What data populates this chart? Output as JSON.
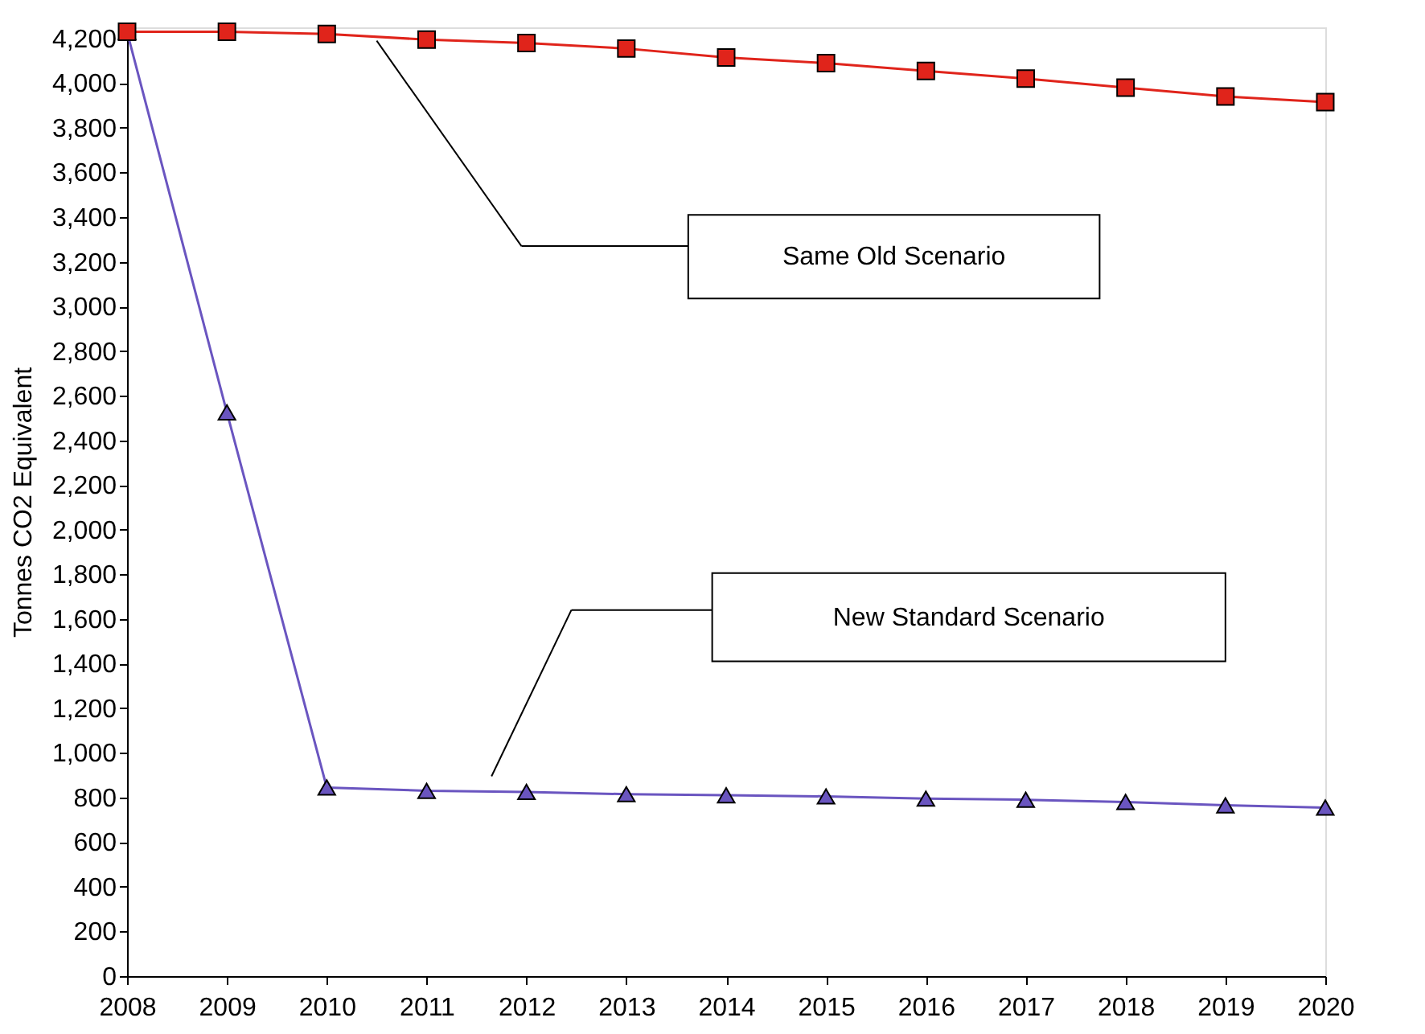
{
  "chart_data": {
    "type": "line",
    "ylabel": "Tonnes CO2 Equivalent",
    "x": [
      2008,
      2009,
      2010,
      2011,
      2012,
      2013,
      2014,
      2015,
      2016,
      2017,
      2018,
      2019,
      2020
    ],
    "series": [
      {
        "color": "#e0241b",
        "marker": "square",
        "values": [
          4230,
          4230,
          4220,
          4195,
          4180,
          4155,
          4115,
          4090,
          4055,
          4020,
          3980,
          3940,
          3915
        ]
      },
      {
        "color": "#6a55c0",
        "marker": "triangle",
        "values": [
          4230,
          2525,
          845,
          830,
          825,
          815,
          810,
          805,
          795,
          790,
          780,
          765,
          755
        ]
      }
    ],
    "xlim": [
      2008,
      2020
    ],
    "xticks": [
      2008,
      2009,
      2010,
      2011,
      2012,
      2013,
      2014,
      2015,
      2016,
      2017,
      2018,
      2019,
      2020
    ],
    "ylim": [
      0,
      4250
    ],
    "yticks": [
      0,
      200,
      400,
      600,
      800,
      {
        "value": 1000,
        "label": "1,000"
      },
      {
        "value": 1200,
        "label": "1,200"
      },
      {
        "value": 1400,
        "label": "1,400"
      },
      {
        "value": 1600,
        "label": "1,600"
      },
      {
        "value": 1800,
        "label": "1,800"
      },
      {
        "value": 2000,
        "label": "2,000"
      },
      {
        "value": 2200,
        "label": "2,200"
      },
      {
        "value": 2400,
        "label": "2,400"
      },
      {
        "value": 2600,
        "label": "2,600"
      },
      {
        "value": 2800,
        "label": "2,800"
      },
      {
        "value": 3000,
        "label": "3,000"
      },
      {
        "value": 3200,
        "label": "3,200"
      },
      {
        "value": 3400,
        "label": "3,400"
      },
      {
        "value": 3600,
        "label": "3,600"
      },
      {
        "value": 3800,
        "label": "3,800"
      },
      {
        "value": 4000,
        "label": "4,000"
      },
      {
        "value": 4200,
        "label": "4,200"
      }
    ],
    "grid": false,
    "legend": false,
    "annotations": [
      "Same Old Scenario",
      "New Standard Scenario"
    ]
  }
}
